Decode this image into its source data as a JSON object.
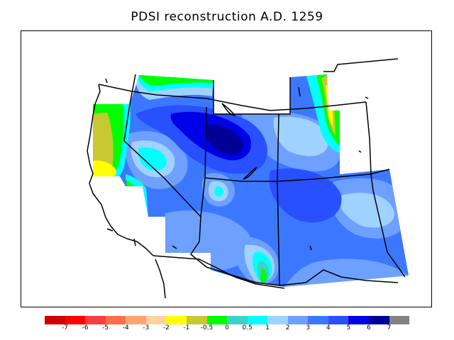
{
  "title": "PDSI reconstruction A.D. 1259",
  "legend": {
    "colors": [
      "#d10000",
      "#ff0000",
      "#ff3c3c",
      "#ff6e4a",
      "#ffa46e",
      "#ffd2a0",
      "#ffff00",
      "#c8c832",
      "#00ff00",
      "#3cd2c8",
      "#00ffff",
      "#a0d2ff",
      "#6ea0ff",
      "#3c78ff",
      "#2850ff",
      "#0000e6",
      "#000096",
      "#828282"
    ],
    "labels": [
      "-7",
      "-6",
      "-5",
      "-4",
      "-3",
      "-2",
      "-1",
      "-0.5",
      "0",
      "0.5",
      "1",
      "2",
      "3",
      "4",
      "5",
      "6",
      "7"
    ]
  }
}
